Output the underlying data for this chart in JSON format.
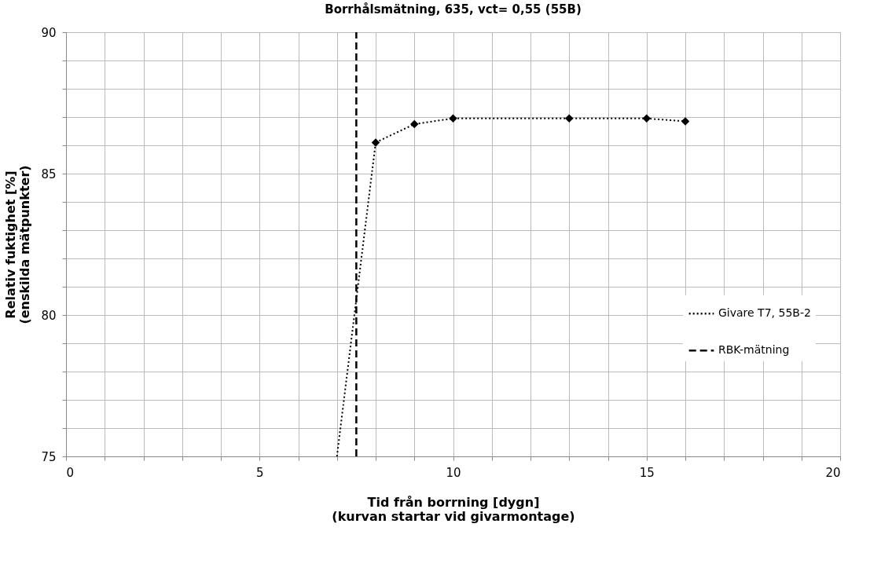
{
  "chart_data": {
    "type": "line",
    "title": "Borrhålsmätning, 635, vct= 0,55 (55B)",
    "xlabel": "Tid från borrning [dygn]",
    "ylabel": "Relativ fuktighet [%]",
    "annotations": [
      "(kurvan startar vid givarmontage)",
      "(enskilda mätpunkter)"
    ],
    "series": [
      {
        "name": "Givare T7, 55B-2",
        "color": "#000000",
        "x": [
          8,
          9,
          10,
          13,
          15,
          16
        ],
        "values": [
          86.1,
          86.75,
          86.95,
          86.95,
          86.95,
          86.85
        ],
        "marker": "diamond",
        "line_style": "dotted"
      },
      {
        "color": "#000000",
        "x": [
          7,
          8
        ],
        "values": [
          75,
          86.1
        ],
        "marker": "none",
        "line_style": "dotted"
      },
      {
        "type": "line",
        "name": "RBK-mätning",
        "color": "#000000",
        "x": [
          7.5,
          7.5
        ],
        "values": [
          75,
          90
        ],
        "marker": "none",
        "line_style": "dashed"
      }
    ],
    "xlim": [
      0,
      20
    ],
    "ylim": [
      75,
      90
    ],
    "xticks": [
      0,
      {
        "value": 1,
        "label": null
      },
      {
        "value": 2,
        "label": null
      },
      {
        "value": 3,
        "label": null
      },
      {
        "value": 4,
        "label": null
      },
      5,
      {
        "value": 6,
        "label": null
      },
      {
        "value": 7,
        "label": null
      },
      {
        "value": 8,
        "label": null
      },
      {
        "value": 9,
        "label": null
      },
      10,
      {
        "value": 11,
        "label": null
      },
      {
        "value": 12,
        "label": null
      },
      {
        "value": 13,
        "label": null
      },
      {
        "value": 14,
        "label": null
      },
      15,
      {
        "value": 16,
        "label": null
      },
      {
        "value": 17,
        "label": null
      },
      {
        "value": 18,
        "label": null
      },
      {
        "value": 19,
        "label": null
      },
      20
    ],
    "yticks": [
      75,
      {
        "value": 76,
        "label": null
      },
      {
        "value": 77,
        "label": null
      },
      {
        "value": 78,
        "label": null
      },
      {
        "value": 79,
        "label": null
      },
      80,
      {
        "value": 81,
        "label": null
      },
      {
        "value": 82,
        "label": null
      },
      {
        "value": 83,
        "label": null
      },
      {
        "value": 84,
        "label": null
      },
      85,
      {
        "value": 86,
        "label": null
      },
      {
        "value": 87,
        "label": null
      },
      {
        "value": 88,
        "label": null
      },
      {
        "value": 89,
        "label": null
      },
      90
    ],
    "grid": true,
    "legend": "right"
  }
}
